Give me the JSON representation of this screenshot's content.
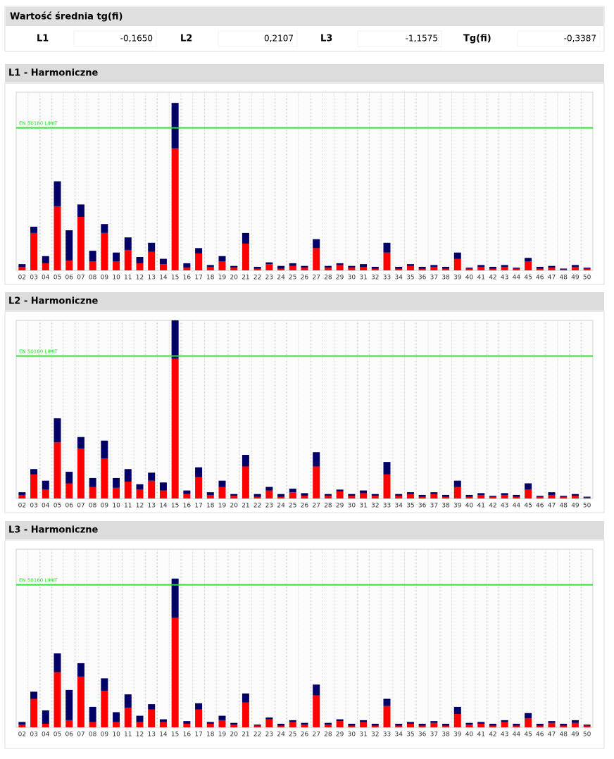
{
  "header": {
    "title": "Wartość średnia tg(fi)",
    "items": [
      {
        "label": "L1",
        "value": "-0,1650"
      },
      {
        "label": "L2",
        "value": "0,2107"
      },
      {
        "label": "L3",
        "value": "-1,1575"
      },
      {
        "label": "Tg(fi)",
        "value": "-0,3387"
      }
    ]
  },
  "chart_data": [
    {
      "type": "bar",
      "stacked": true,
      "title": "L1 - Harmoniczne",
      "categories": [
        "02",
        "03",
        "04",
        "05",
        "06",
        "07",
        "08",
        "09",
        "10",
        "11",
        "12",
        "13",
        "14",
        "15",
        "16",
        "17",
        "18",
        "19",
        "20",
        "21",
        "22",
        "23",
        "24",
        "25",
        "26",
        "27",
        "28",
        "29",
        "30",
        "31",
        "32",
        "33",
        "34",
        "35",
        "36",
        "37",
        "38",
        "39",
        "40",
        "41",
        "42",
        "43",
        "44",
        "45",
        "46",
        "47",
        "48",
        "49",
        "50"
      ],
      "series": [
        {
          "color": "#ff0000",
          "values": [
            2,
            21,
            4,
            36,
            5.5,
            30,
            5,
            21,
            5,
            11.5,
            4,
            10.5,
            3.5,
            68.5,
            1.5,
            9.5,
            2,
            5,
            1.5,
            15,
            1,
            3.5,
            1,
            2.5,
            1.5,
            12.5,
            1.5,
            3,
            1.5,
            2,
            1,
            10,
            1,
            2.5,
            1,
            2,
            1,
            6.5,
            1,
            2,
            1,
            2,
            1,
            5,
            1,
            1.5,
            0.5,
            2,
            1
          ]
        },
        {
          "color": "#000066",
          "values": [
            1.5,
            3.5,
            4,
            14,
            17,
            7,
            6,
            5,
            5,
            7,
            3.5,
            5,
            3,
            25.5,
            2.5,
            3,
            1,
            3,
            1,
            6,
            1,
            1,
            1.5,
            1.5,
            1,
            5,
            1,
            1,
            1,
            1.5,
            1,
            5.5,
            1,
            1,
            1,
            1,
            1,
            3.5,
            0.5,
            1,
            1,
            1,
            0.5,
            2,
            1,
            1,
            0.5,
            1,
            0.5
          ]
        }
      ],
      "ylim": [
        0,
        100
      ],
      "limit": {
        "value": 80,
        "label": "EN 50160 LIMIT",
        "color": "#33dd33"
      }
    },
    {
      "type": "bar",
      "stacked": true,
      "title": "L2 - Harmoniczne",
      "categories": [
        "02",
        "03",
        "04",
        "05",
        "06",
        "07",
        "08",
        "09",
        "10",
        "11",
        "12",
        "13",
        "14",
        "15",
        "16",
        "17",
        "18",
        "19",
        "20",
        "21",
        "22",
        "23",
        "24",
        "25",
        "26",
        "27",
        "28",
        "29",
        "30",
        "31",
        "32",
        "33",
        "34",
        "35",
        "36",
        "37",
        "38",
        "39",
        "40",
        "41",
        "42",
        "43",
        "44",
        "45",
        "46",
        "47",
        "48",
        "49",
        "50"
      ],
      "series": [
        {
          "color": "#ff0000",
          "values": [
            2,
            13.5,
            5,
            31.5,
            8.5,
            28,
            6.5,
            22.5,
            6,
            9.5,
            5,
            10,
            4.5,
            78.5,
            2.5,
            12,
            2,
            6.5,
            1.5,
            18,
            1,
            4.5,
            1,
            3.5,
            1.5,
            18,
            1.5,
            4,
            1.5,
            3,
            1.5,
            13.5,
            1.5,
            2.5,
            1,
            2.5,
            1,
            6.5,
            1,
            2,
            1,
            2,
            1,
            5,
            1,
            2,
            1,
            1.5,
            0.5
          ]
        },
        {
          "color": "#000066",
          "values": [
            1.5,
            3,
            5,
            13.5,
            6.5,
            6.5,
            5,
            10,
            5.5,
            7,
            3,
            4.5,
            4.5,
            21.5,
            2,
            5.5,
            1.5,
            3.5,
            1,
            6.5,
            1.5,
            2,
            1.5,
            2,
            1.5,
            8,
            1,
            1,
            1,
            1.5,
            1,
            7,
            1,
            1,
            1,
            1,
            1,
            3.5,
            1,
            1,
            0.5,
            1,
            1,
            3.5,
            0.5,
            1.5,
            0.5,
            1,
            0.5
          ]
        }
      ],
      "ylim": [
        0,
        100
      ],
      "limit": {
        "value": 80,
        "label": "EN 50160 LIMIT",
        "color": "#33dd33"
      }
    },
    {
      "type": "bar",
      "stacked": true,
      "title": "L3 - Harmoniczne",
      "categories": [
        "02",
        "03",
        "04",
        "05",
        "06",
        "07",
        "08",
        "09",
        "10",
        "11",
        "12",
        "13",
        "14",
        "15",
        "16",
        "17",
        "18",
        "19",
        "20",
        "21",
        "22",
        "23",
        "24",
        "25",
        "26",
        "27",
        "28",
        "29",
        "30",
        "31",
        "32",
        "33",
        "34",
        "35",
        "36",
        "37",
        "38",
        "39",
        "40",
        "41",
        "42",
        "43",
        "44",
        "45",
        "46",
        "47",
        "48",
        "49",
        "50"
      ],
      "series": [
        {
          "color": "#ff0000",
          "values": [
            1.5,
            16,
            2,
            31,
            4,
            28.5,
            3,
            20.5,
            3,
            11,
            3,
            10,
            3,
            61.5,
            2,
            10,
            2,
            4,
            1.5,
            14,
            1,
            4.5,
            1,
            3,
            1.5,
            18,
            1.5,
            3.5,
            1,
            3,
            1,
            12,
            1,
            2,
            1,
            2.5,
            1,
            7.5,
            1.5,
            2,
            1,
            3,
            1,
            5,
            1,
            2.5,
            1,
            2.5,
            1
          ]
        },
        {
          "color": "#000066",
          "values": [
            1.5,
            4,
            7.5,
            10.5,
            17,
            7.5,
            8.5,
            7,
            5.5,
            7.5,
            3.5,
            3,
            1.5,
            22,
            1.5,
            3.5,
            1,
            2.5,
            1,
            5,
            0.5,
            1,
            1,
            1,
            1,
            6,
            1,
            1,
            1,
            1,
            1,
            4,
            1,
            1,
            1,
            1,
            1,
            4,
            1,
            1,
            1,
            1,
            1,
            3,
            1,
            1,
            1,
            1.5,
            0.5
          ]
        }
      ],
      "ylim": [
        0,
        100
      ],
      "limit": {
        "value": 80,
        "label": "EN 50160 LIMIT",
        "color": "#33dd33"
      }
    }
  ]
}
